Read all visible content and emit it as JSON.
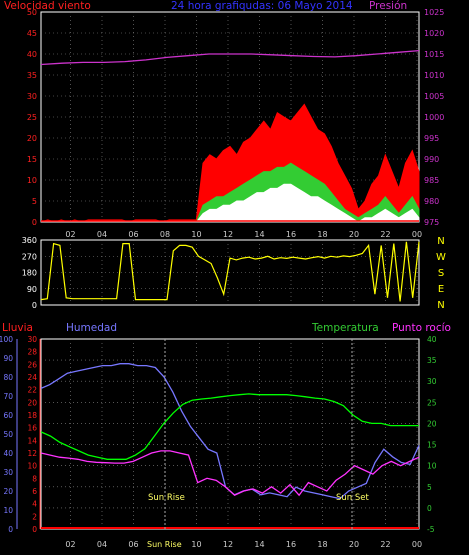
{
  "chart_data": [
    {
      "type": "line",
      "title": "24 hora grafiqudas: 06 Mayo 2014",
      "left_axis_label": "Velocidad viento",
      "right_axis_label": "Presión",
      "left_ticks": [
        "0",
        "5",
        "10",
        "15",
        "20",
        "25",
        "30",
        "35",
        "40",
        "45",
        "50"
      ],
      "right_ticks": [
        "975",
        "980",
        "985",
        "990",
        "995",
        "1000",
        "1005",
        "1010",
        "1015",
        "1020",
        "1025"
      ],
      "ylim_left": [
        0,
        50
      ],
      "ylim_right": [
        975,
        1025
      ],
      "series": [
        {
          "name": "Presión",
          "axis": "right",
          "color": "#cc33cc",
          "values": [
            1012.5,
            1012.8,
            1013.0,
            1013.0,
            1013.2,
            1013.6,
            1014.2,
            1014.6,
            1015.0,
            1015.0,
            1015.0,
            1014.8,
            1014.6,
            1014.4,
            1014.3,
            1014.6,
            1015.0,
            1015.4,
            1015.8
          ]
        },
        {
          "color": "#ff0000",
          "axis": "left",
          "values": [
            0,
            0.5,
            0,
            0.5,
            0,
            0.5,
            0,
            0.5,
            0.5,
            0.5,
            0.5,
            0.5,
            0.5,
            0,
            0.5,
            0.5,
            0.5,
            0.5,
            0,
            0.5,
            0.5,
            0.5,
            0.5,
            0.5,
            14,
            16,
            15,
            17,
            18,
            16,
            19,
            20,
            22,
            24,
            22,
            26,
            25,
            24,
            26,
            28,
            25,
            22,
            21,
            18,
            14,
            11,
            8,
            3,
            5,
            9,
            11,
            16,
            12,
            8,
            14,
            17,
            12
          ]
        },
        {
          "color": "#33cc33",
          "axis": "left",
          "values": [
            0,
            0,
            0,
            0,
            0,
            0,
            0,
            0,
            0,
            0,
            0,
            0,
            0,
            0,
            0,
            0,
            0,
            0,
            0,
            0,
            0,
            0,
            0,
            0,
            4,
            5,
            6,
            6,
            7,
            8,
            9,
            10,
            11,
            12,
            12,
            13,
            13,
            14,
            13,
            12,
            11,
            10,
            9,
            7,
            5,
            3,
            2,
            1,
            2,
            3,
            4,
            6,
            4,
            2,
            4,
            6,
            3
          ]
        },
        {
          "color": "#ffffff",
          "axis": "left",
          "values": [
            0,
            0,
            0,
            0,
            0,
            0,
            0,
            0,
            0,
            0,
            0,
            0,
            0,
            0,
            0,
            0,
            0,
            0,
            0,
            0,
            0,
            0,
            0,
            0,
            2,
            3,
            3,
            4,
            4,
            5,
            5,
            6,
            7,
            7,
            8,
            8,
            9,
            9,
            8,
            7,
            6,
            6,
            5,
            4,
            3,
            2,
            1,
            0,
            1,
            1,
            2,
            3,
            2,
            1,
            2,
            3,
            1
          ]
        }
      ]
    },
    {
      "type": "line",
      "left_ticks": [
        "0",
        "90",
        "180",
        "270",
        "360"
      ],
      "right_ticks": [
        "N",
        "W",
        "S",
        "E",
        "N"
      ],
      "ylim": [
        0,
        360
      ],
      "series": [
        {
          "color": "#ffff00",
          "values": [
            30,
            35,
            340,
            330,
            40,
            35,
            35,
            35,
            35,
            35,
            35,
            35,
            35,
            340,
            340,
            30,
            30,
            30,
            30,
            30,
            30,
            300,
            330,
            330,
            320,
            270,
            250,
            230,
            150,
            60,
            260,
            250,
            260,
            265,
            255,
            260,
            270,
            255,
            262,
            258,
            265,
            260,
            255,
            262,
            268,
            260,
            270,
            265,
            272,
            268,
            275,
            285,
            330,
            60,
            330,
            40,
            340,
            20,
            350,
            40,
            350
          ]
        }
      ]
    },
    {
      "type": "line",
      "left_axis_label": "Lluvia",
      "left2_axis_label": "Humedad",
      "right_axis_label": "Temperatura",
      "right2_axis_label": "Punto rocío",
      "humidity_ticks": [
        "0",
        "10",
        "20",
        "30",
        "40",
        "50",
        "60",
        "70",
        "80",
        "90",
        "100"
      ],
      "rain_ticks": [
        "0",
        "2",
        "4",
        "6",
        "8",
        "10",
        "12",
        "14",
        "16",
        "18",
        "20",
        "22",
        "24",
        "26",
        "28",
        "30"
      ],
      "temp_ticks": [
        "-5",
        "0",
        "5",
        "10",
        "15",
        "20",
        "25",
        "30",
        "35",
        "40"
      ],
      "ylim_humidity": [
        0,
        100
      ],
      "ylim_temp": [
        -5,
        40
      ],
      "annotations": [
        {
          "label": "Sun Rise"
        },
        {
          "label": "Sun Set"
        }
      ],
      "x_ticks": [
        "02",
        "04",
        "06",
        "08",
        "10",
        "12",
        "14",
        "16",
        "18",
        "20",
        "22",
        "00"
      ],
      "series": [
        {
          "name": "Humedad",
          "axis": "humidity",
          "color": "#7777ff",
          "values": [
            74,
            76,
            79,
            82,
            83,
            84,
            85,
            86,
            86,
            87,
            87,
            86,
            86,
            85,
            80,
            72,
            62,
            54,
            48,
            42,
            40,
            22,
            18,
            20,
            21,
            18,
            19,
            18,
            17,
            22,
            20,
            19,
            18,
            17,
            16,
            20,
            22,
            24,
            35,
            42,
            38,
            35,
            34,
            44
          ]
        },
        {
          "name": "Temperatura",
          "axis": "temp",
          "color": "#00ff00",
          "values": [
            18,
            17,
            15.5,
            14.5,
            13.5,
            12.5,
            12,
            11.5,
            11.5,
            11.5,
            12.5,
            14,
            17,
            20,
            22.5,
            24.5,
            25.5,
            25.8,
            26,
            26.3,
            26.6,
            26.8,
            27,
            26.8,
            26.8,
            26.8,
            26.8,
            26.6,
            26.3,
            26,
            25.8,
            25.2,
            24.2,
            22,
            20.5,
            20,
            20,
            19.5,
            19.5,
            19.5,
            19.5
          ]
        },
        {
          "name": "Punto rocío",
          "axis": "temp",
          "color": "#ff33ff",
          "values": [
            13,
            12.5,
            12,
            11.8,
            11.5,
            11,
            10.8,
            10.7,
            10.6,
            10.6,
            11,
            12,
            13,
            13.5,
            13.5,
            13,
            12.5,
            6,
            7,
            6.5,
            5,
            3,
            4,
            4.5,
            3.5,
            5,
            3.5,
            5.5,
            3,
            6,
            5,
            4,
            6.5,
            8,
            10,
            9,
            8,
            10,
            11,
            10,
            11,
            12
          ]
        },
        {
          "name": "Lluvia",
          "axis": "rain",
          "color": "#ff0000",
          "values": [
            0,
            0,
            0,
            0,
            0,
            0,
            0,
            0,
            0,
            0,
            0,
            0
          ]
        }
      ]
    }
  ],
  "colors": {
    "wind_axis": "#ff2020",
    "pressure_axis": "#cc33cc",
    "title": "#3333ff",
    "direction_axis": "#ffff00",
    "humidity_axis": "#7777ff",
    "temp_axis": "#33cc33",
    "rain_axis": "#ff2020",
    "dew_axis": "#ff33ff",
    "frame": "#ffffff",
    "grid": "#888888"
  }
}
